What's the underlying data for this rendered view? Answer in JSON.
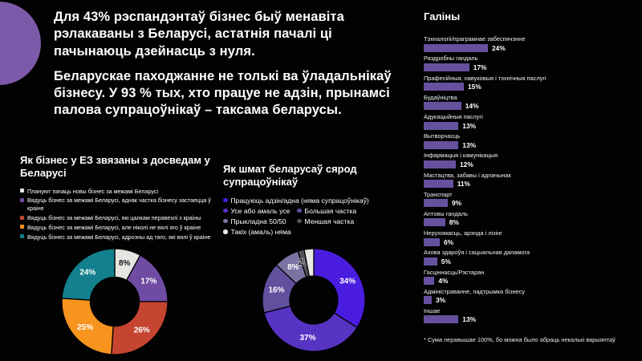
{
  "header": {
    "paragraph1": "Для 43% рэспандэнтаў бізнес быў менавіта рэлакаваны з Беларусі, астатнія пачалі ці пачынаюць дзейнасць з нуля.",
    "paragraph2": "Беларускае паходжанне не толькі ва ўладальнікаў бізнесу. У 93 % тых, хто працуе не адзін, прынамсі палова супрацоўнікаў – таксама беларусы."
  },
  "colors": {
    "background": "#020202",
    "accent_circle": "#7D59A9",
    "bar": "#66519E",
    "text": "#FFFFFF"
  },
  "chart_data": [
    {
      "type": "pie",
      "donut": true,
      "title": "Як бізнес у ЕЗ звязаны з досведам у Беларусі",
      "legend_position": "top",
      "slices": [
        {
          "label": "Плануют пачаць новы бізнес за межамі Беларусі",
          "value": 8,
          "color": "#E6E5E1",
          "label_color": "#17161d"
        },
        {
          "label": "Вядуць бізнес за межамі Беларусі, аднак частка бізнесу застаецца ў краіне",
          "value": 17,
          "color": "#6F4BA3"
        },
        {
          "label": "Вядуць бізнес за межамі Беларусі, які цалкам перавезлі з краіны",
          "value": 26,
          "color": "#C54531"
        },
        {
          "label": "Вядуць бізнес за межамі Беларусі, але ніколі не вялі яго ў краіне",
          "value": 25,
          "color": "#F6941E"
        },
        {
          "label": "Вядуць бізнес за межамі Беларусі, адрозны ад таго, які вялі ў краіне",
          "value": 24,
          "color": "#12808D"
        }
      ]
    },
    {
      "type": "pie",
      "donut": true,
      "title": "Як шмат беларусаў сярод супрацоўнікаў",
      "legend_position": "top",
      "slices": [
        {
          "label": "Працуюць адзін/адна (няма супрацоўнікаў)",
          "value": 34,
          "color": "#4A1CE0"
        },
        {
          "label": "Усе або амаль усе",
          "value": 37,
          "color": "#5733C4"
        },
        {
          "label": "Большая частка",
          "value": 16,
          "color": "#60509E"
        },
        {
          "label": "Прыкладна 50/50",
          "value": 8,
          "color": "#7B73A1"
        },
        {
          "label": "Меншая частка",
          "value": 2,
          "color": "#53515B",
          "label_color": "#17161d",
          "halo": "light",
          "label_size": 8.5
        },
        {
          "label": "Такіх (амаль) няма",
          "value": 3,
          "color": "#EAE9E6",
          "show_value": false
        }
      ]
    },
    {
      "type": "bar",
      "orientation": "horizontal",
      "title": "Галіны",
      "value_suffix": "%",
      "xlim": [
        0,
        30
      ],
      "bar_color": "#66519E",
      "categories": [
        "Тэхналогіі/праграмнае забеспячэнне",
        "Раздробны гандаль",
        "Прафесійныя, навуковыя і тэхнічныя паслугі",
        "Будаўніцтва",
        "Адукацыйныя паслугі",
        "Вытворчасць",
        "Інфармацыя і камунікацыя",
        "Мастацтва, забавы і адпачынак",
        "Транспарт",
        "Аптовы гандаль",
        "Нерухомасць, арэнда і лізінг",
        "Ахова здароўя і сацыяльная дапамога",
        "Гасціннасць/Рэстаран",
        "Адміністраванне, падтрымка бізнесу",
        "Іншае"
      ],
      "values": [
        24,
        17,
        15,
        14,
        13,
        13,
        12,
        11,
        9,
        8,
        6,
        5,
        4,
        3,
        13
      ],
      "footnote": "* Сума перавышае 100%, бо можна было абраць некалькі варыянтаў"
    }
  ]
}
